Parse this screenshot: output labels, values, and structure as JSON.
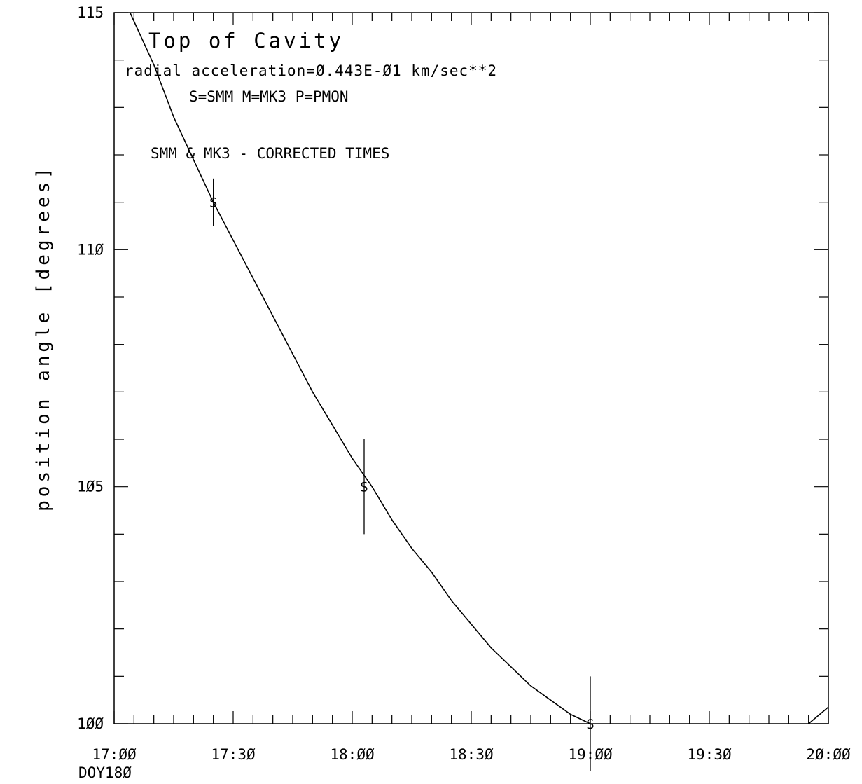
{
  "chart_data": {
    "type": "line",
    "title": "Top of Cavity",
    "annotations": [
      "radial acceleration=Ø.443E-Ø1  km/sec**2",
      "S=SMM  M=MK3  P=PMON",
      "SMM & MK3 - CORRECTED TIMES"
    ],
    "xlabel": "",
    "xlabel_sub": "DOY18Ø",
    "ylabel": "position angle [degrees]",
    "x_unit": "time of day (HH:MM)",
    "xlim": [
      "17:00",
      "20:00"
    ],
    "ylim": [
      100,
      115
    ],
    "x_tick_labels": [
      "17:ØØ",
      "17:3Ø",
      "18:ØØ",
      "18:3Ø",
      "19:ØØ",
      "19:3Ø",
      "2Ø:ØØ"
    ],
    "y_tick_labels": [
      "1ØØ",
      "1Ø5",
      "11Ø",
      "115"
    ],
    "grid": false,
    "series": [
      {
        "values": [
          {
            "x": "17:04",
            "y": 115.0
          },
          {
            "x": "17:10",
            "y": 113.9
          },
          {
            "x": "17:15",
            "y": 112.8
          },
          {
            "x": "17:20",
            "y": 111.9
          },
          {
            "x": "17:25",
            "y": 111.0
          },
          {
            "x": "17:30",
            "y": 110.2
          },
          {
            "x": "17:35",
            "y": 109.4
          },
          {
            "x": "17:40",
            "y": 108.6
          },
          {
            "x": "17:45",
            "y": 107.8
          },
          {
            "x": "17:50",
            "y": 107.0
          },
          {
            "x": "17:55",
            "y": 106.3
          },
          {
            "x": "18:00",
            "y": 105.6
          },
          {
            "x": "18:05",
            "y": 105.0
          },
          {
            "x": "18:10",
            "y": 104.3
          },
          {
            "x": "18:15",
            "y": 103.7
          },
          {
            "x": "18:20",
            "y": 103.2
          },
          {
            "x": "18:25",
            "y": 102.6
          },
          {
            "x": "18:30",
            "y": 102.1
          },
          {
            "x": "18:35",
            "y": 101.6
          },
          {
            "x": "18:40",
            "y": 101.2
          },
          {
            "x": "18:45",
            "y": 100.8
          },
          {
            "x": "18:50",
            "y": 100.5
          },
          {
            "x": "18:55",
            "y": 100.2
          },
          {
            "x": "19:00",
            "y": 100.0
          }
        ]
      },
      {
        "values": [
          {
            "x": "19:55",
            "y": 100.0
          },
          {
            "x": "20:00",
            "y": 100.35
          }
        ]
      }
    ],
    "points": [
      {
        "label": "S",
        "x": "17:25",
        "y": 111.0,
        "y_err_low": 110.5,
        "y_err_high": 111.5
      },
      {
        "label": "S",
        "x": "18:03",
        "y": 105.0,
        "y_err_low": 104.0,
        "y_err_high": 106.0
      },
      {
        "label": "S",
        "x": "19:00",
        "y": 100.0,
        "y_err_low": 99.0,
        "y_err_high": 101.0
      }
    ]
  }
}
